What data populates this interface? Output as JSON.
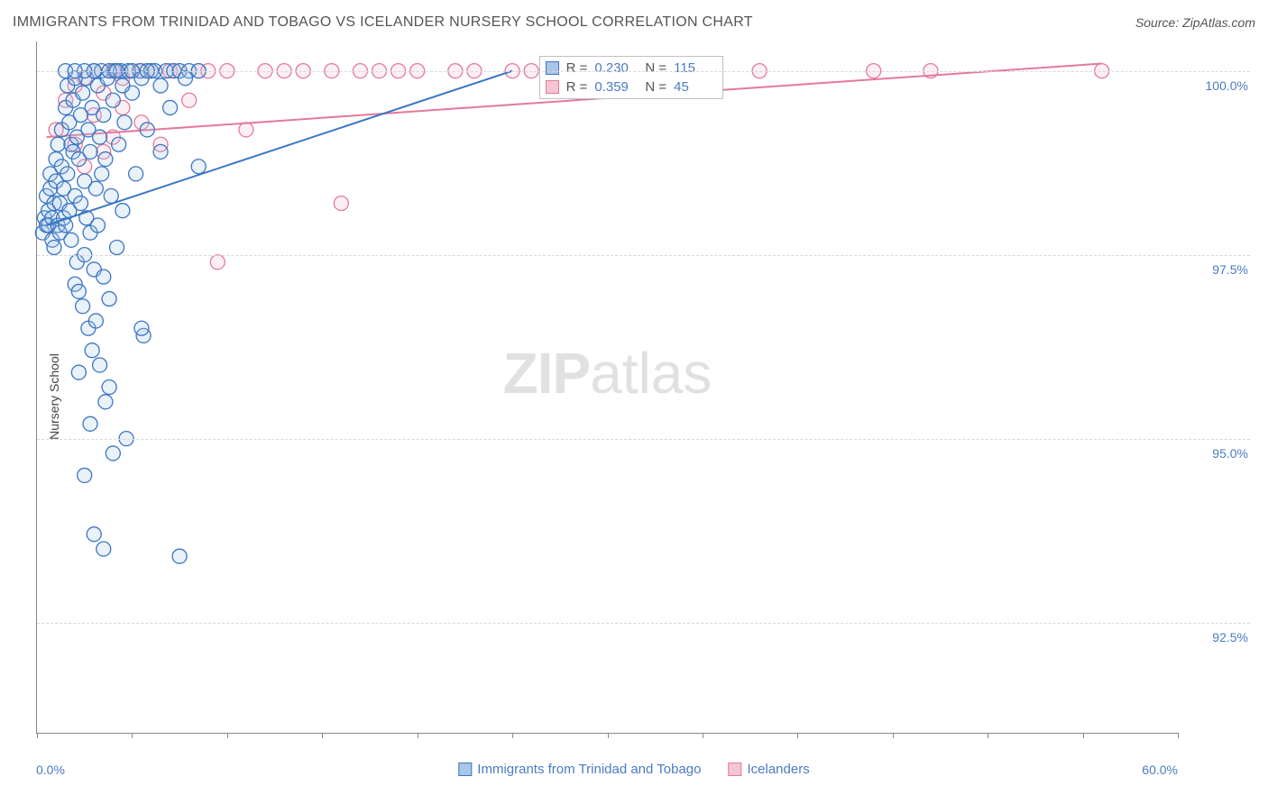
{
  "header": {
    "title": "IMMIGRANTS FROM TRINIDAD AND TOBAGO VS ICELANDER NURSERY SCHOOL CORRELATION CHART",
    "source": "Source: ZipAtlas.com"
  },
  "watermark": {
    "part1": "ZIP",
    "part2": "atlas"
  },
  "chart": {
    "type": "scatter",
    "y_axis_label": "Nursery School",
    "xlim": [
      0.0,
      60.0
    ],
    "ylim": [
      91.0,
      100.4
    ],
    "x_tick_positions": [
      0,
      5,
      10,
      15,
      20,
      25,
      30,
      35,
      40,
      45,
      50,
      55,
      60
    ],
    "x_label_min": "0.0%",
    "x_label_max": "60.0%",
    "y_gridlines": [
      92.5,
      95.0,
      97.5,
      100.0
    ],
    "y_tick_labels": [
      "92.5%",
      "95.0%",
      "97.5%",
      "100.0%"
    ],
    "background_color": "#ffffff",
    "grid_color": "#d8d8d8",
    "axis_color": "#888888",
    "marker_radius": 8,
    "marker_stroke_width": 1.3,
    "marker_fill_opacity": 0.25,
    "line_width": 2,
    "series_a": {
      "name": "Immigrants from Trinidad and Tobago",
      "stroke": "#3b76c4",
      "fill": "#a8c6e8",
      "r_value": "0.230",
      "n_value": "115",
      "trend": {
        "x1": 0.5,
        "y1": 97.9,
        "x2": 25.0,
        "y2": 100.0
      },
      "points": [
        [
          0.3,
          97.8
        ],
        [
          0.4,
          98.0
        ],
        [
          0.5,
          97.9
        ],
        [
          0.5,
          98.3
        ],
        [
          0.6,
          98.1
        ],
        [
          0.6,
          97.9
        ],
        [
          0.7,
          98.4
        ],
        [
          0.7,
          98.6
        ],
        [
          0.8,
          97.7
        ],
        [
          0.8,
          98.0
        ],
        [
          0.9,
          98.2
        ],
        [
          0.9,
          97.6
        ],
        [
          1.0,
          98.5
        ],
        [
          1.0,
          98.8
        ],
        [
          1.1,
          97.9
        ],
        [
          1.1,
          99.0
        ],
        [
          1.2,
          98.2
        ],
        [
          1.2,
          97.8
        ],
        [
          1.3,
          98.7
        ],
        [
          1.3,
          99.2
        ],
        [
          1.4,
          98.0
        ],
        [
          1.4,
          98.4
        ],
        [
          1.5,
          99.5
        ],
        [
          1.5,
          97.9
        ],
        [
          1.6,
          98.6
        ],
        [
          1.6,
          99.8
        ],
        [
          1.7,
          98.1
        ],
        [
          1.7,
          99.3
        ],
        [
          1.8,
          97.7
        ],
        [
          1.8,
          99.0
        ],
        [
          1.9,
          98.9
        ],
        [
          1.9,
          99.6
        ],
        [
          2.0,
          97.1
        ],
        [
          2.0,
          98.3
        ],
        [
          2.1,
          97.4
        ],
        [
          2.1,
          99.1
        ],
        [
          2.2,
          98.8
        ],
        [
          2.2,
          97.0
        ],
        [
          2.3,
          99.4
        ],
        [
          2.3,
          98.2
        ],
        [
          2.4,
          96.8
        ],
        [
          2.4,
          99.7
        ],
        [
          2.5,
          98.5
        ],
        [
          2.5,
          97.5
        ],
        [
          2.6,
          99.9
        ],
        [
          2.6,
          98.0
        ],
        [
          2.7,
          96.5
        ],
        [
          2.7,
          99.2
        ],
        [
          2.8,
          97.8
        ],
        [
          2.8,
          98.9
        ],
        [
          2.9,
          96.2
        ],
        [
          2.9,
          99.5
        ],
        [
          3.0,
          97.3
        ],
        [
          3.0,
          100.0
        ],
        [
          3.1,
          98.4
        ],
        [
          3.1,
          96.6
        ],
        [
          3.2,
          99.8
        ],
        [
          3.2,
          97.9
        ],
        [
          3.3,
          96.0
        ],
        [
          3.3,
          99.1
        ],
        [
          3.4,
          98.6
        ],
        [
          3.4,
          100.0
        ],
        [
          3.5,
          97.2
        ],
        [
          3.5,
          99.4
        ],
        [
          3.6,
          95.5
        ],
        [
          3.6,
          98.8
        ],
        [
          3.7,
          99.9
        ],
        [
          3.8,
          96.9
        ],
        [
          3.9,
          98.3
        ],
        [
          4.0,
          99.6
        ],
        [
          4.1,
          100.0
        ],
        [
          4.2,
          97.6
        ],
        [
          4.3,
          99.0
        ],
        [
          4.4,
          100.0
        ],
        [
          4.5,
          98.1
        ],
        [
          4.6,
          99.3
        ],
        [
          4.7,
          95.0
        ],
        [
          4.8,
          100.0
        ],
        [
          5.0,
          99.7
        ],
        [
          5.2,
          98.6
        ],
        [
          5.4,
          100.0
        ],
        [
          5.6,
          96.4
        ],
        [
          5.8,
          99.2
        ],
        [
          6.0,
          100.0
        ],
        [
          6.2,
          100.0
        ],
        [
          6.5,
          98.9
        ],
        [
          6.8,
          100.0
        ],
        [
          7.0,
          99.5
        ],
        [
          7.2,
          100.0
        ],
        [
          7.5,
          100.0
        ],
        [
          8.0,
          100.0
        ],
        [
          8.5,
          98.7
        ],
        [
          4.0,
          94.8
        ],
        [
          2.5,
          94.5
        ],
        [
          3.0,
          93.7
        ],
        [
          3.5,
          93.5
        ],
        [
          2.8,
          95.2
        ],
        [
          3.8,
          95.7
        ],
        [
          5.5,
          96.5
        ],
        [
          2.2,
          95.9
        ],
        [
          2.0,
          99.9
        ],
        [
          1.5,
          100.0
        ],
        [
          4.5,
          99.8
        ],
        [
          3.8,
          100.0
        ],
        [
          5.0,
          100.0
        ],
        [
          5.5,
          99.9
        ],
        [
          6.5,
          99.8
        ],
        [
          7.8,
          99.9
        ],
        [
          8.5,
          100.0
        ],
        [
          5.8,
          100.0
        ],
        [
          4.2,
          100.0
        ],
        [
          3.0,
          100.0
        ],
        [
          2.5,
          100.0
        ],
        [
          2.0,
          100.0
        ],
        [
          7.5,
          93.4
        ]
      ]
    },
    "series_b": {
      "name": "Icelanders",
      "stroke": "#e47a9a",
      "fill": "#f6c5d4",
      "r_value": "0.359",
      "n_value": "45",
      "trend": {
        "x1": 0.5,
        "y1": 99.1,
        "x2": 56.0,
        "y2": 100.1
      },
      "points": [
        [
          1.0,
          99.2
        ],
        [
          1.5,
          99.6
        ],
        [
          2.0,
          99.0
        ],
        [
          2.0,
          99.8
        ],
        [
          2.5,
          98.7
        ],
        [
          2.5,
          99.9
        ],
        [
          3.0,
          99.4
        ],
        [
          3.0,
          100.0
        ],
        [
          3.5,
          98.9
        ],
        [
          3.5,
          99.7
        ],
        [
          4.0,
          99.1
        ],
        [
          4.0,
          100.0
        ],
        [
          4.5,
          99.5
        ],
        [
          5.0,
          100.0
        ],
        [
          5.5,
          99.3
        ],
        [
          6.0,
          100.0
        ],
        [
          6.5,
          99.0
        ],
        [
          7.0,
          100.0
        ],
        [
          7.5,
          100.0
        ],
        [
          8.0,
          99.6
        ],
        [
          8.5,
          100.0
        ],
        [
          9.0,
          100.0
        ],
        [
          9.5,
          97.4
        ],
        [
          10.0,
          100.0
        ],
        [
          11.0,
          99.2
        ],
        [
          12.0,
          100.0
        ],
        [
          13.0,
          100.0
        ],
        [
          14.0,
          100.0
        ],
        [
          15.5,
          100.0
        ],
        [
          16.0,
          98.2
        ],
        [
          17.0,
          100.0
        ],
        [
          18.0,
          100.0
        ],
        [
          19.0,
          100.0
        ],
        [
          20.0,
          100.0
        ],
        [
          22.0,
          100.0
        ],
        [
          23.0,
          100.0
        ],
        [
          25.0,
          100.0
        ],
        [
          26.0,
          100.0
        ],
        [
          27.0,
          100.0
        ],
        [
          38.0,
          100.0
        ],
        [
          44.0,
          100.0
        ],
        [
          47.0,
          100.0
        ],
        [
          56.0,
          100.0
        ],
        [
          4.5,
          99.9
        ],
        [
          5.5,
          100.0
        ]
      ]
    },
    "stats_box": {
      "left_pct": 44.0,
      "top_y": 100.2
    },
    "bottom_legend": {
      "item_a": "Immigrants from Trinidad and Tobago",
      "item_b": "Icelanders"
    },
    "r_label": "R =",
    "n_label": "N ="
  }
}
